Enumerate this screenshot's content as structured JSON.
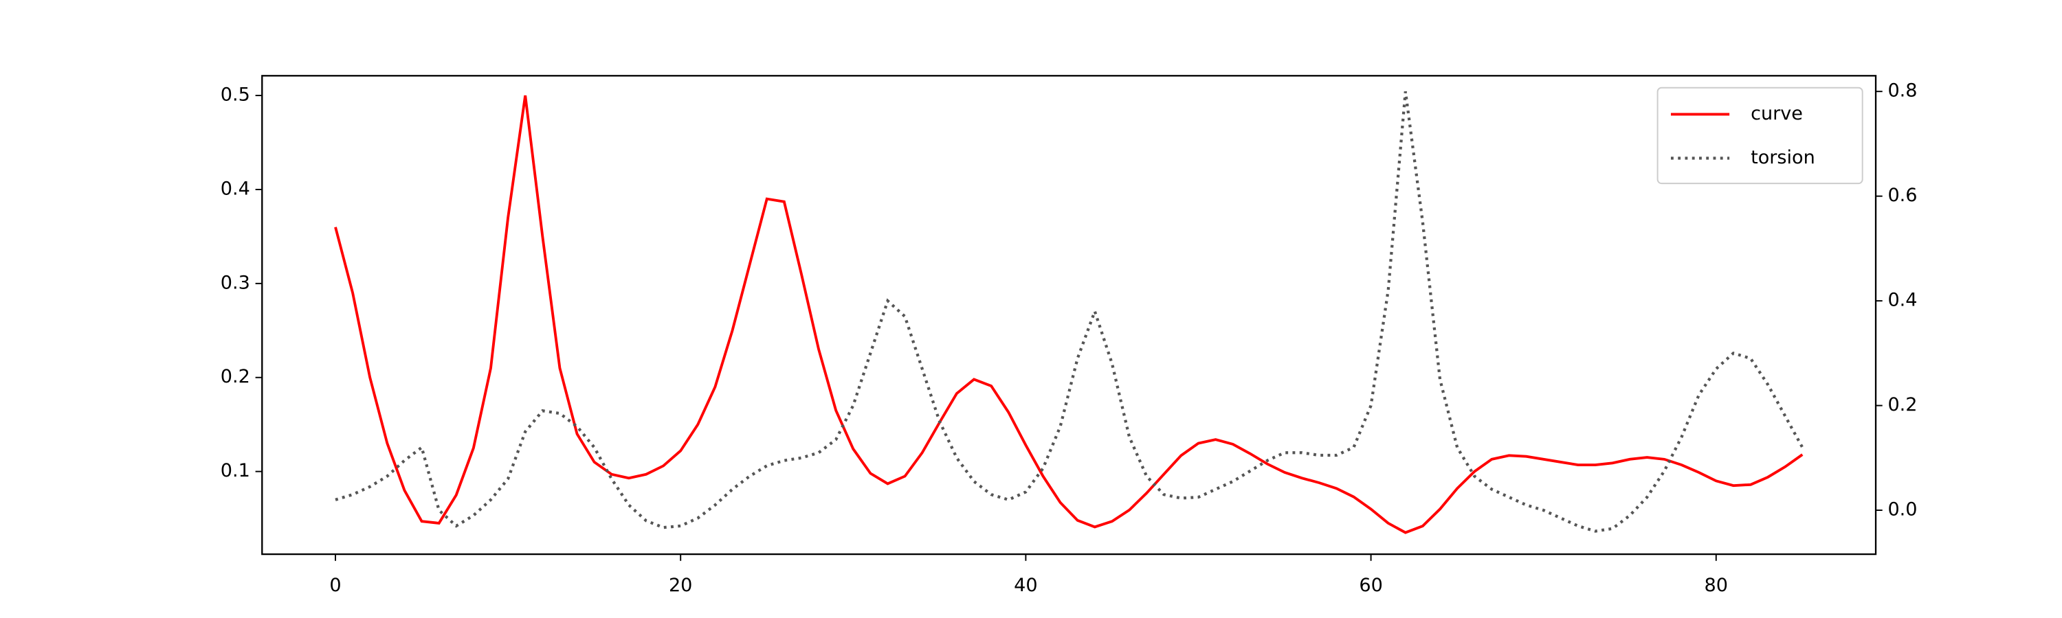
{
  "chart_data": {
    "type": "line",
    "x": [
      0,
      1,
      2,
      3,
      4,
      5,
      6,
      7,
      8,
      9,
      10,
      11,
      12,
      13,
      14,
      15,
      16,
      17,
      18,
      19,
      20,
      21,
      22,
      23,
      24,
      25,
      26,
      27,
      28,
      29,
      30,
      31,
      32,
      33,
      34,
      35,
      36,
      37,
      38,
      39,
      40,
      41,
      42,
      43,
      44,
      45,
      46,
      47,
      48,
      49,
      50,
      51,
      52,
      53,
      54,
      55,
      56,
      57,
      58,
      59,
      60,
      61,
      62,
      63,
      64,
      65,
      66,
      67,
      68,
      69,
      70,
      71,
      72,
      73,
      74,
      75,
      76,
      77,
      78,
      79,
      80,
      81,
      82,
      83,
      84,
      85
    ],
    "series": [
      {
        "name": "curve",
        "color": "#ff0000",
        "axis": "y",
        "values": [
          0.36,
          0.29,
          0.2,
          0.13,
          0.08,
          0.047,
          0.045,
          0.075,
          0.125,
          0.21,
          0.37,
          0.5,
          0.35,
          0.21,
          0.14,
          0.11,
          0.097,
          0.093,
          0.097,
          0.106,
          0.122,
          0.15,
          0.19,
          0.25,
          0.32,
          0.39,
          0.387,
          0.31,
          0.23,
          0.165,
          0.124,
          0.098,
          0.087,
          0.095,
          0.12,
          0.152,
          0.183,
          0.198,
          0.191,
          0.163,
          0.128,
          0.095,
          0.067,
          0.048,
          0.041,
          0.047,
          0.059,
          0.077,
          0.097,
          0.117,
          0.13,
          0.134,
          0.129,
          0.119,
          0.108,
          0.099,
          0.093,
          0.088,
          0.082,
          0.073,
          0.06,
          0.045,
          0.035,
          0.042,
          0.06,
          0.082,
          0.1,
          0.113,
          0.117,
          0.116,
          0.113,
          0.11,
          0.107,
          0.107,
          0.109,
          0.113,
          0.115,
          0.113,
          0.107,
          0.099,
          0.09,
          0.085,
          0.086,
          0.094,
          0.105,
          0.118
        ]
      },
      {
        "name": "torsion",
        "color": "#555555",
        "axis": "y2",
        "dashed": true,
        "values": [
          0.02,
          0.03,
          0.045,
          0.065,
          0.095,
          0.12,
          0.0,
          -0.03,
          -0.01,
          0.02,
          0.06,
          0.15,
          0.19,
          0.185,
          0.16,
          0.12,
          0.06,
          0.01,
          -0.02,
          -0.033,
          -0.03,
          -0.015,
          0.01,
          0.04,
          0.065,
          0.085,
          0.095,
          0.1,
          0.11,
          0.135,
          0.2,
          0.3,
          0.4,
          0.37,
          0.27,
          0.17,
          0.1,
          0.055,
          0.03,
          0.02,
          0.035,
          0.08,
          0.16,
          0.29,
          0.38,
          0.28,
          0.14,
          0.065,
          0.03,
          0.023,
          0.025,
          0.04,
          0.055,
          0.075,
          0.095,
          0.11,
          0.11,
          0.105,
          0.105,
          0.12,
          0.2,
          0.42,
          0.8,
          0.55,
          0.25,
          0.12,
          0.065,
          0.04,
          0.025,
          0.01,
          0.0,
          -0.015,
          -0.03,
          -0.04,
          -0.035,
          -0.01,
          0.025,
          0.075,
          0.14,
          0.22,
          0.27,
          0.3,
          0.29,
          0.24,
          0.18,
          0.12
        ]
      }
    ],
    "xlim": [
      -4.25,
      89.25
    ],
    "xticks": [
      0,
      20,
      40,
      60,
      80
    ],
    "ylim": [
      0.012,
      0.521
    ],
    "yticks": [
      0.1,
      0.2,
      0.3,
      0.4,
      0.5
    ],
    "y2lim": [
      -0.084,
      0.83
    ],
    "y2ticks": [
      {
        "value": 0,
        "label": "0.0"
      },
      0.2,
      0.4,
      0.6,
      0.8
    ],
    "legend": "upper right",
    "grid": false
  }
}
